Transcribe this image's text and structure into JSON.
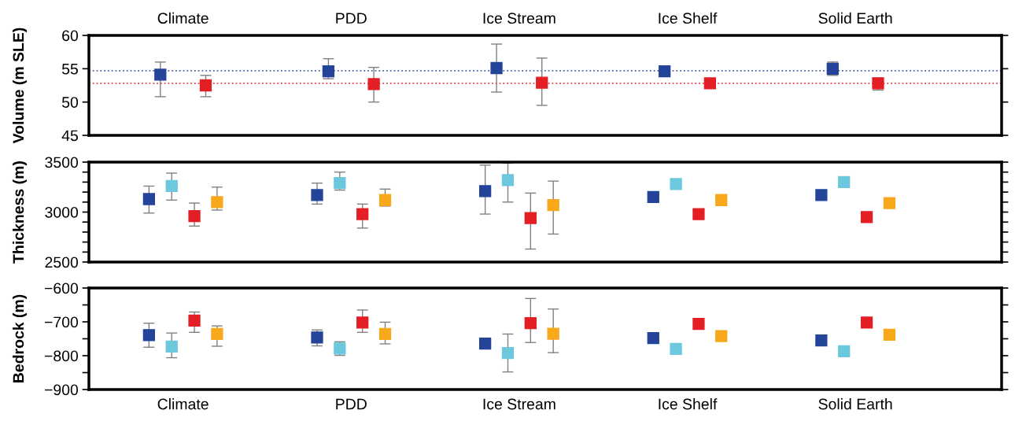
{
  "chart_data": [
    {
      "type": "scatter",
      "ylabel": "Volume (m SLE)",
      "categories": [
        "Climate",
        "PDD",
        "Ice Stream",
        "Ice Shelf",
        "Solid Earth"
      ],
      "ylim": [
        45,
        60
      ],
      "yticks": [
        45,
        50,
        55,
        60
      ],
      "marker": "square",
      "grid": false,
      "series": [
        {
          "color": "#24449a",
          "values": [
            54.1,
            54.6,
            55.1,
            54.6,
            55.0
          ],
          "errors": [
            [
              50.8,
              56.0
            ],
            [
              53.5,
              56.5
            ],
            [
              51.5,
              58.7
            ],
            null,
            [
              54.0,
              56.0
            ]
          ]
        },
        {
          "color": "#e31e24",
          "values": [
            52.5,
            52.7,
            52.9,
            52.8,
            52.8
          ],
          "errors": [
            [
              50.8,
              54.0
            ],
            [
              50.0,
              55.2
            ],
            [
              49.5,
              56.6
            ],
            null,
            [
              51.8,
              53.6
            ]
          ]
        }
      ],
      "ref_lines": [
        {
          "axis": "y",
          "value": 54.7,
          "color": "#5060b0",
          "line_style": "dotted"
        },
        {
          "axis": "y",
          "value": 52.8,
          "color": "#e84040",
          "line_style": "dotted"
        }
      ]
    },
    {
      "type": "scatter",
      "ylabel": "Thickness (m)",
      "categories": [
        null,
        null,
        null,
        null,
        null
      ],
      "ylim": [
        2500,
        3500
      ],
      "yticks": [
        2500,
        {
          "value": 2600,
          "label": null
        },
        {
          "value": 2700,
          "label": null
        },
        {
          "value": 2800,
          "label": null
        },
        {
          "value": 2900,
          "label": null
        },
        3000,
        {
          "value": 3100,
          "label": null
        },
        {
          "value": 3200,
          "label": null
        },
        {
          "value": 3300,
          "label": null
        },
        {
          "value": 3400,
          "label": null
        },
        3500
      ],
      "marker": "square",
      "grid": false,
      "tick_labels": "y",
      "series": [
        {
          "color": "#24449a",
          "values": [
            3130,
            3170,
            3210,
            3150,
            3170
          ],
          "errors": [
            [
              2990,
              3260
            ],
            [
              3080,
              3290
            ],
            [
              2980,
              3470
            ],
            null,
            null
          ]
        },
        {
          "color": "#6cc8dc",
          "values": [
            3260,
            3290,
            3320,
            3280,
            3300
          ],
          "errors": [
            [
              3120,
              3390
            ],
            [
              3220,
              3400
            ],
            [
              3100,
              3490
            ],
            null,
            null
          ]
        },
        {
          "color": "#e31e24",
          "values": [
            2960,
            2980,
            2940,
            2980,
            2950
          ],
          "errors": [
            [
              2860,
              3090
            ],
            [
              2840,
              3080
            ],
            [
              2630,
              3190
            ],
            null,
            null
          ]
        },
        {
          "color": "#f7a81b",
          "values": [
            3100,
            3120,
            3070,
            3120,
            3090
          ],
          "errors": [
            [
              3020,
              3250
            ],
            [
              3060,
              3230
            ],
            [
              2780,
              3310
            ],
            null,
            null
          ]
        }
      ]
    },
    {
      "type": "scatter",
      "ylabel": "Bedrock (m)",
      "categories": [
        "Climate",
        "PDD",
        "Ice Stream",
        "Ice Shelf",
        "Solid Earth"
      ],
      "ylim": [
        -900,
        -600
      ],
      "yticks": [
        {
          "value": -900,
          "label": "−900"
        },
        {
          "value": -850,
          "label": null
        },
        {
          "value": -800,
          "label": "−800"
        },
        {
          "value": -750,
          "label": null
        },
        {
          "value": -700,
          "label": "−700"
        },
        {
          "value": -650,
          "label": null
        },
        {
          "value": -600,
          "label": "−600"
        }
      ],
      "marker": "square",
      "grid": false,
      "series": [
        {
          "color": "#24449a",
          "values": [
            -739,
            -746,
            -764,
            -748,
            -755
          ],
          "errors": [
            [
              -775,
              -704
            ],
            [
              -771,
              -724
            ],
            null,
            null,
            null
          ]
        },
        {
          "color": "#6cc8dc",
          "values": [
            -773,
            -779,
            -792,
            -780,
            -787
          ],
          "errors": [
            [
              -806,
              -733
            ],
            [
              -799,
              -759
            ],
            [
              -848,
              -736
            ],
            null,
            null
          ]
        },
        {
          "color": "#e31e24",
          "values": [
            -696,
            -702,
            -704,
            -706,
            -702
          ],
          "errors": [
            [
              -731,
              -671
            ],
            [
              -731,
              -665
            ],
            [
              -761,
              -631
            ],
            null,
            null
          ]
        },
        {
          "color": "#f7a81b",
          "values": [
            -736,
            -736,
            -735,
            -742,
            -738
          ],
          "errors": [
            [
              -772,
              -712
            ],
            [
              -765,
              -701
            ],
            [
              -791,
              -662
            ],
            null,
            null
          ]
        }
      ]
    }
  ]
}
